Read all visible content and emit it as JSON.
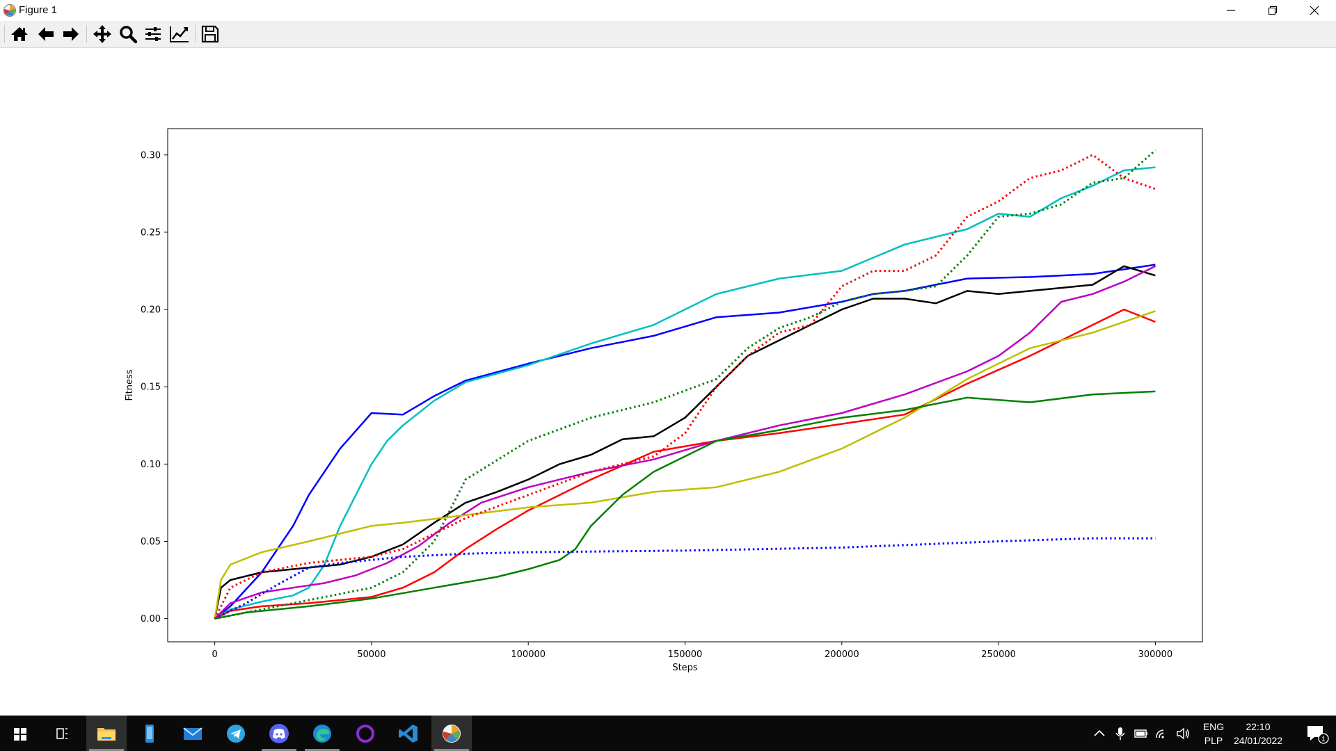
{
  "window": {
    "title": "Figure 1",
    "controls": [
      "minimize",
      "maximize",
      "close"
    ]
  },
  "toolbar": {
    "buttons": [
      "home-icon",
      "back-icon",
      "forward-icon",
      "pan-icon",
      "zoom-icon",
      "configure-subplots-icon",
      "edit-axis-icon",
      "save-icon"
    ]
  },
  "chart_data": {
    "type": "line",
    "title": "",
    "xlabel": "Steps",
    "ylabel": "Fitness",
    "xlim": [
      -15000,
      315000
    ],
    "ylim": [
      -0.015,
      0.317
    ],
    "grid": false,
    "xticks": [
      0,
      50000,
      100000,
      150000,
      200000,
      250000,
      300000
    ],
    "xtick_labels": [
      "0",
      "50000",
      "100000",
      "150000",
      "200000",
      "250000",
      "300000"
    ],
    "yticks": [
      0.0,
      0.05,
      0.1,
      0.15,
      0.2,
      0.25,
      0.3
    ],
    "ytick_labels": [
      "0.00",
      "0.05",
      "0.10",
      "0.15",
      "0.20",
      "0.25",
      "0.30"
    ],
    "series": [
      {
        "color": "#0000ff",
        "style": "solid",
        "x": [
          0,
          5000,
          15000,
          25000,
          30000,
          40000,
          50000,
          60000,
          70000,
          80000,
          100000,
          120000,
          140000,
          160000,
          180000,
          200000,
          210000,
          220000,
          240000,
          260000,
          280000,
          300000
        ],
        "y": [
          0.0,
          0.008,
          0.03,
          0.06,
          0.08,
          0.11,
          0.133,
          0.132,
          0.144,
          0.154,
          0.165,
          0.175,
          0.183,
          0.195,
          0.198,
          0.205,
          0.21,
          0.212,
          0.22,
          0.221,
          0.223,
          0.229
        ]
      },
      {
        "color": "#00bfbf",
        "style": "solid",
        "x": [
          0,
          5000,
          15000,
          25000,
          30000,
          35000,
          40000,
          50000,
          55000,
          60000,
          70000,
          80000,
          100000,
          120000,
          140000,
          160000,
          180000,
          200000,
          220000,
          240000,
          250000,
          260000,
          270000,
          280000,
          290000,
          300000
        ],
        "y": [
          0.0,
          0.006,
          0.011,
          0.015,
          0.02,
          0.035,
          0.06,
          0.1,
          0.115,
          0.125,
          0.141,
          0.153,
          0.164,
          0.178,
          0.19,
          0.21,
          0.22,
          0.225,
          0.242,
          0.252,
          0.262,
          0.26,
          0.272,
          0.28,
          0.29,
          0.292
        ]
      },
      {
        "color": "#000000",
        "style": "solid",
        "x": [
          0,
          2000,
          5000,
          15000,
          30000,
          40000,
          50000,
          60000,
          70000,
          80000,
          90000,
          100000,
          110000,
          120000,
          130000,
          140000,
          150000,
          160000,
          170000,
          180000,
          190000,
          200000,
          210000,
          220000,
          230000,
          240000,
          250000,
          260000,
          270000,
          280000,
          290000,
          300000
        ],
        "y": [
          0.0,
          0.02,
          0.025,
          0.03,
          0.033,
          0.035,
          0.04,
          0.048,
          0.062,
          0.075,
          0.082,
          0.09,
          0.1,
          0.106,
          0.116,
          0.118,
          0.13,
          0.15,
          0.17,
          0.18,
          0.19,
          0.2,
          0.207,
          0.207,
          0.204,
          0.212,
          0.21,
          0.212,
          0.214,
          0.216,
          0.228,
          0.222
        ]
      },
      {
        "color": "#ff0000",
        "style": "solid",
        "x": [
          0,
          5000,
          15000,
          30000,
          40000,
          50000,
          60000,
          70000,
          80000,
          90000,
          100000,
          120000,
          140000,
          160000,
          180000,
          200000,
          220000,
          240000,
          260000,
          280000,
          290000,
          300000
        ],
        "y": [
          0.0,
          0.005,
          0.008,
          0.01,
          0.012,
          0.014,
          0.02,
          0.03,
          0.045,
          0.058,
          0.07,
          0.09,
          0.108,
          0.115,
          0.12,
          0.126,
          0.132,
          0.152,
          0.17,
          0.19,
          0.2,
          0.192
        ]
      },
      {
        "color": "#bf00bf",
        "style": "solid",
        "x": [
          0,
          5000,
          15000,
          25000,
          35000,
          45000,
          55000,
          65000,
          75000,
          85000,
          100000,
          120000,
          140000,
          160000,
          180000,
          200000,
          220000,
          240000,
          250000,
          260000,
          270000,
          280000,
          290000,
          300000
        ],
        "y": [
          0.0,
          0.01,
          0.017,
          0.02,
          0.023,
          0.028,
          0.036,
          0.047,
          0.062,
          0.075,
          0.085,
          0.095,
          0.103,
          0.115,
          0.125,
          0.133,
          0.145,
          0.16,
          0.17,
          0.185,
          0.205,
          0.21,
          0.218,
          0.228
        ]
      },
      {
        "color": "#bfbf00",
        "style": "solid",
        "x": [
          0,
          2000,
          5000,
          15000,
          30000,
          40000,
          50000,
          60000,
          80000,
          100000,
          120000,
          140000,
          160000,
          180000,
          200000,
          220000,
          240000,
          260000,
          280000,
          300000
        ],
        "y": [
          0.0,
          0.025,
          0.035,
          0.043,
          0.05,
          0.055,
          0.06,
          0.062,
          0.067,
          0.072,
          0.075,
          0.082,
          0.085,
          0.095,
          0.11,
          0.13,
          0.155,
          0.175,
          0.185,
          0.199
        ]
      },
      {
        "color": "#008000",
        "style": "solid",
        "x": [
          0,
          10000,
          30000,
          50000,
          70000,
          90000,
          100000,
          110000,
          115000,
          120000,
          130000,
          140000,
          160000,
          180000,
          200000,
          220000,
          240000,
          260000,
          280000,
          300000
        ],
        "y": [
          0.0,
          0.004,
          0.008,
          0.013,
          0.02,
          0.027,
          0.032,
          0.038,
          0.045,
          0.06,
          0.08,
          0.095,
          0.115,
          0.122,
          0.13,
          0.135,
          0.143,
          0.14,
          0.145,
          0.147
        ]
      },
      {
        "color": "#0000ff",
        "style": "dotted",
        "x": [
          0,
          10000,
          20000,
          30000,
          40000,
          50000,
          60000,
          80000,
          100000,
          150000,
          200000,
          250000,
          280000,
          300000
        ],
        "y": [
          0.0,
          0.01,
          0.022,
          0.033,
          0.036,
          0.038,
          0.04,
          0.042,
          0.043,
          0.044,
          0.046,
          0.05,
          0.052,
          0.052
        ]
      },
      {
        "color": "#ff0000",
        "style": "dotted",
        "x": [
          0,
          5000,
          15000,
          30000,
          50000,
          60000,
          70000,
          80000,
          100000,
          120000,
          140000,
          150000,
          160000,
          170000,
          180000,
          190000,
          200000,
          210000,
          220000,
          230000,
          240000,
          250000,
          260000,
          270000,
          280000,
          290000,
          300000
        ],
        "y": [
          0.0,
          0.02,
          0.03,
          0.036,
          0.04,
          0.045,
          0.055,
          0.065,
          0.08,
          0.095,
          0.105,
          0.12,
          0.15,
          0.17,
          0.185,
          0.19,
          0.215,
          0.225,
          0.225,
          0.235,
          0.26,
          0.27,
          0.285,
          0.29,
          0.3,
          0.285,
          0.278
        ]
      },
      {
        "color": "#008000",
        "style": "dotted",
        "x": [
          0,
          10000,
          30000,
          50000,
          60000,
          70000,
          80000,
          100000,
          120000,
          140000,
          160000,
          170000,
          180000,
          190000,
          200000,
          210000,
          220000,
          230000,
          240000,
          250000,
          260000,
          270000,
          280000,
          290000,
          300000
        ],
        "y": [
          0.0,
          0.004,
          0.012,
          0.02,
          0.03,
          0.05,
          0.09,
          0.115,
          0.13,
          0.14,
          0.155,
          0.175,
          0.188,
          0.195,
          0.205,
          0.21,
          0.212,
          0.215,
          0.235,
          0.26,
          0.262,
          0.268,
          0.282,
          0.285,
          0.303
        ]
      }
    ]
  },
  "taskbar": {
    "apps": [
      "windows-start-icon",
      "task-view-icon",
      "file-explorer-icon",
      "phone-app-icon",
      "mail-icon",
      "telegram-icon",
      "discord-icon",
      "edge-icon",
      "cortana-icon",
      "vscode-icon",
      "matplotlib-icon"
    ],
    "language": {
      "line1": "ENG",
      "line2": "PLP"
    },
    "clock": {
      "time": "22:10",
      "date": "24/01/2022"
    },
    "notification_count": "1"
  }
}
